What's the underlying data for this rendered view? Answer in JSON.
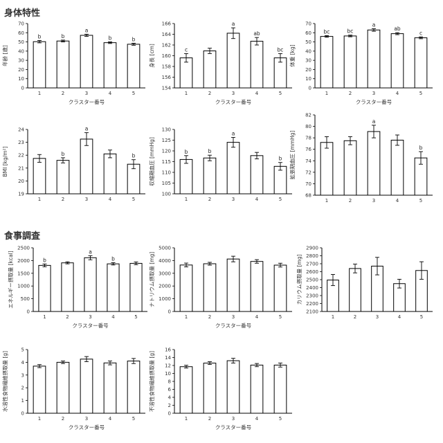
{
  "sections": {
    "body": "身体特性",
    "diet": "食事調査"
  },
  "chart_data": [
    {
      "type": "bar",
      "section": "body",
      "categories": [
        "1",
        "2",
        "3",
        "4",
        "5"
      ],
      "values": [
        50.3,
        51.0,
        57.2,
        49.2,
        47.5
      ],
      "errors": [
        1.3,
        1.0,
        1.2,
        0.9,
        1.1
      ],
      "letters": [
        "b",
        "b",
        "a",
        "b",
        "b"
      ],
      "ylabel": "年齢 [歳]",
      "xlabel": "クラスター番号",
      "ylim": [
        0,
        70
      ],
      "yticks": [
        0,
        10,
        20,
        30,
        40,
        50,
        60,
        70
      ]
    },
    {
      "type": "bar",
      "section": "body",
      "categories": [
        "1",
        "2",
        "3",
        "4",
        "5"
      ],
      "values": [
        159.6,
        160.9,
        164.2,
        162.7,
        159.6
      ],
      "errors": [
        0.8,
        0.5,
        1.0,
        0.7,
        0.8
      ],
      "letters": [
        "c",
        "",
        "a",
        "ab",
        "bc"
      ],
      "ylabel": "身長 [cm]",
      "xlabel": "クラスター番号",
      "ylim": [
        154,
        166
      ],
      "yticks": [
        154,
        156,
        158,
        160,
        162,
        164,
        166
      ]
    },
    {
      "type": "bar",
      "section": "body",
      "categories": [
        "1",
        "2",
        "3",
        "4",
        "5"
      ],
      "values": [
        56.0,
        56.5,
        63.0,
        59.0,
        54.5
      ],
      "errors": [
        0.9,
        0.9,
        1.4,
        1.1,
        1.0
      ],
      "letters": [
        "bc",
        "bc",
        "a",
        "ab",
        "c"
      ],
      "ylabel": "体重 [kg]",
      "xlabel": "クラスター番号",
      "ylim": [
        0,
        70
      ],
      "yticks": [
        0,
        10,
        20,
        30,
        40,
        50,
        60,
        70
      ]
    },
    {
      "type": "bar",
      "section": "body",
      "categories": [
        "1",
        "2",
        "3",
        "4",
        "5"
      ],
      "values": [
        21.75,
        21.6,
        23.25,
        22.1,
        21.3
      ],
      "errors": [
        0.3,
        0.2,
        0.5,
        0.3,
        0.35
      ],
      "letters": [
        "",
        "b",
        "a",
        "",
        "b"
      ],
      "ylabel": "BMI [kg/m²]",
      "xlabel": "",
      "ylim": [
        19,
        24
      ],
      "yticks": [
        19,
        20,
        21,
        22,
        23,
        24
      ]
    },
    {
      "type": "bar",
      "section": "body",
      "categories": [
        "1",
        "2",
        "3",
        "4",
        "5"
      ],
      "values": [
        116.0,
        116.7,
        124.0,
        117.8,
        112.8
      ],
      "errors": [
        1.8,
        1.3,
        2.3,
        1.5,
        1.8
      ],
      "letters": [
        "b",
        "b",
        "a",
        "",
        "b"
      ],
      "ylabel": "収縮期血圧 [mmHg]",
      "xlabel": "",
      "ylim": [
        100,
        130
      ],
      "yticks": [
        100,
        105,
        110,
        115,
        120,
        125,
        130
      ]
    },
    {
      "type": "bar",
      "section": "body",
      "categories": [
        "1",
        "2",
        "3",
        "4",
        "5"
      ],
      "values": [
        77.2,
        77.5,
        79.1,
        77.6,
        74.5
      ],
      "errors": [
        1.0,
        0.7,
        1.1,
        0.9,
        1.1
      ],
      "letters": [
        "",
        "",
        "a",
        "",
        "b"
      ],
      "ylabel": "拡張期血圧 [mmHg]",
      "xlabel": "",
      "ylim": [
        68,
        82
      ],
      "yticks": [
        68,
        70,
        72,
        74,
        76,
        78,
        80,
        82
      ]
    },
    {
      "type": "bar",
      "section": "diet",
      "categories": [
        "1",
        "2",
        "3",
        "4",
        "5"
      ],
      "values": [
        1810,
        1910,
        2110,
        1870,
        1890
      ],
      "errors": [
        55,
        40,
        80,
        45,
        55
      ],
      "letters": [
        "b",
        "",
        "a",
        "b",
        ""
      ],
      "ylabel": "エネルギー摂取量 [kcal]",
      "xlabel": "クラスター番号",
      "ylim": [
        0,
        2500
      ],
      "yticks": [
        0,
        500,
        1000,
        1500,
        2000,
        2500
      ]
    },
    {
      "type": "bar",
      "section": "diet",
      "categories": [
        "1",
        "2",
        "3",
        "4",
        "5"
      ],
      "values": [
        3650,
        3750,
        4120,
        3930,
        3640
      ],
      "errors": [
        150,
        110,
        220,
        140,
        150
      ],
      "letters": [
        "",
        "",
        "",
        "",
        ""
      ],
      "ylabel": "ナトリウム摂取量 [mg]",
      "xlabel": "クラスター番号",
      "ylim": [
        0,
        5000
      ],
      "yticks": [
        0,
        1000,
        2000,
        3000,
        4000,
        5000
      ]
    },
    {
      "type": "bar",
      "section": "diet",
      "categories": [
        "1",
        "2",
        "3",
        "4",
        "5"
      ],
      "values": [
        2495,
        2640,
        2670,
        2450,
        2615
      ],
      "errors": [
        70,
        55,
        110,
        55,
        110
      ],
      "letters": [
        "",
        "",
        "",
        "",
        ""
      ],
      "ylabel": "カリウム摂取量 [mg]",
      "xlabel": "",
      "ylim": [
        2100,
        2900
      ],
      "yticks": [
        2100,
        2200,
        2300,
        2400,
        2500,
        2600,
        2700,
        2800,
        2900
      ]
    },
    {
      "type": "bar",
      "section": "diet",
      "categories": [
        "1",
        "2",
        "3",
        "4",
        "5"
      ],
      "values": [
        3.7,
        4.0,
        4.25,
        3.95,
        4.1
      ],
      "errors": [
        0.12,
        0.1,
        0.2,
        0.15,
        0.2
      ],
      "letters": [
        "",
        "",
        "",
        "",
        ""
      ],
      "ylabel": "水溶性食物繊維摂取量 [g]",
      "xlabel": "クラスター番号",
      "ylim": [
        0,
        5
      ],
      "yticks": [
        0,
        1,
        2,
        3,
        4,
        5
      ]
    },
    {
      "type": "bar",
      "section": "diet",
      "categories": [
        "1",
        "2",
        "3",
        "4",
        "5"
      ],
      "values": [
        11.7,
        12.6,
        13.2,
        12.1,
        12.1
      ],
      "errors": [
        0.35,
        0.35,
        0.6,
        0.4,
        0.5
      ],
      "letters": [
        "",
        "",
        "",
        "",
        ""
      ],
      "ylabel": "不溶性食物繊維摂取量 [g]",
      "xlabel": "クラスター番号",
      "ylim": [
        0,
        16
      ],
      "yticks": [
        0,
        2,
        4,
        6,
        8,
        10,
        12,
        14,
        16
      ]
    }
  ]
}
